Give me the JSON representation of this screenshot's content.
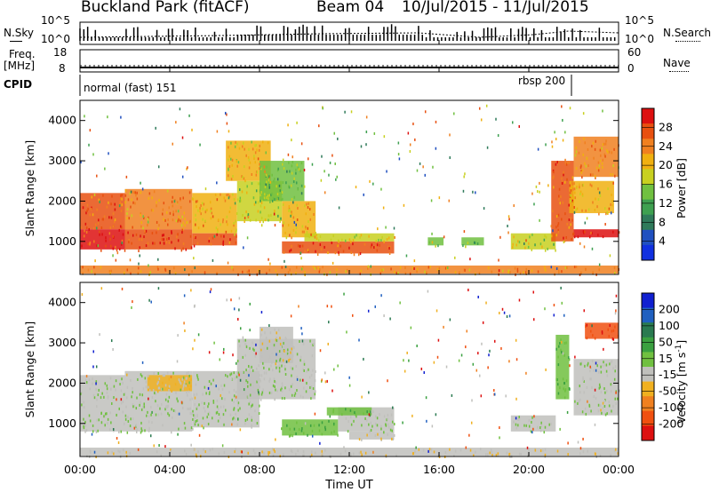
{
  "header": {
    "station": "Buckland Park (fitACF)",
    "beam": "Beam 04",
    "dates": "10/Jul/2015 - 11/Jul/2015"
  },
  "noise_panel": {
    "left_label": "N.Sky",
    "left_ticks": [
      "10^5",
      "10^0"
    ],
    "right_label": "N.Search",
    "right_ticks": [
      "10^5",
      "10^0"
    ]
  },
  "freq_panel": {
    "left_label": "Freq.",
    "left_unit": "[MHz]",
    "left_ticks": [
      "18",
      "8"
    ],
    "right_label": "Nave",
    "right_ticks": [
      "60",
      "0"
    ]
  },
  "cpid_panel": {
    "label": "CPID",
    "modes": [
      "normal (fast) 151",
      "rbsp 200"
    ]
  },
  "time_axis": {
    "ticks": [
      "00:00",
      "04:00",
      "08:00",
      "12:00",
      "16:00",
      "20:00",
      "00:00"
    ],
    "label": "Time UT"
  },
  "power_panel": {
    "ylabel": "Slant Range [km]",
    "yticks": [
      "1000",
      "2000",
      "3000",
      "4000"
    ],
    "colorbar_label": "Power [dB]",
    "colorbar_ticks": [
      "4",
      "8",
      "12",
      "16",
      "20",
      "24",
      "28"
    ],
    "colors": [
      "#1030e0",
      "#2050c0",
      "#2f7a5a",
      "#3ea050",
      "#70c040",
      "#c8d020",
      "#f0b010",
      "#f08020",
      "#e85010",
      "#dd1010"
    ]
  },
  "velocity_panel": {
    "ylabel": "Slant Range [km]",
    "yticks": [
      "1000",
      "2000",
      "3000",
      "4000"
    ],
    "colorbar_label": "Velocity [m s",
    "colorbar_label_sup": "-1",
    "colorbar_label_end": "]",
    "colorbar_ticks": [
      "200",
      "100",
      "50",
      "15",
      "-15",
      "-50",
      "-100",
      "-200"
    ],
    "colors": [
      "#1020d0",
      "#2060c0",
      "#2a7a50",
      "#3aa040",
      "#70c040",
      "#c0c0bc",
      "#f0b020",
      "#f08020",
      "#f05010",
      "#dd1010"
    ]
  },
  "chart_data": [
    {
      "type": "heatmap",
      "title": "",
      "xlabel": "Time UT",
      "ylabel": "Slant Range [km]",
      "xlim": [
        0,
        24
      ],
      "ylim": [
        180,
        4500
      ],
      "value_label": "Power [dB]",
      "value_range": [
        0,
        30
      ],
      "cells": [
        {
          "t0": 0.0,
          "t1": 2.0,
          "r0": 1300,
          "r1": 2200,
          "v": 24
        },
        {
          "t0": 0.0,
          "t1": 2.0,
          "r0": 800,
          "r1": 1300,
          "v": 27
        },
        {
          "t0": 2.0,
          "t1": 5.0,
          "r0": 1300,
          "r1": 2300,
          "v": 21
        },
        {
          "t0": 2.0,
          "t1": 5.0,
          "r0": 800,
          "r1": 1300,
          "v": 26
        },
        {
          "t0": 5.0,
          "t1": 7.0,
          "r0": 1200,
          "r1": 2200,
          "v": 20
        },
        {
          "t0": 5.0,
          "t1": 7.0,
          "r0": 900,
          "r1": 1200,
          "v": 26
        },
        {
          "t0": 6.5,
          "t1": 8.5,
          "r0": 2500,
          "r1": 3500,
          "v": 19
        },
        {
          "t0": 7.0,
          "t1": 9.0,
          "r0": 1500,
          "r1": 2500,
          "v": 15
        },
        {
          "t0": 8.0,
          "t1": 10.0,
          "r0": 2000,
          "r1": 3000,
          "v": 13
        },
        {
          "t0": 9.0,
          "t1": 10.5,
          "r0": 1100,
          "r1": 2000,
          "v": 20
        },
        {
          "t0": 9.0,
          "t1": 14.0,
          "r0": 700,
          "r1": 1000,
          "v": 25
        },
        {
          "t0": 10.0,
          "t1": 14.0,
          "r0": 1000,
          "r1": 1200,
          "v": 16
        },
        {
          "t0": 15.5,
          "t1": 16.2,
          "r0": 900,
          "r1": 1100,
          "v": 14
        },
        {
          "t0": 17.0,
          "t1": 18.0,
          "r0": 900,
          "r1": 1100,
          "v": 13
        },
        {
          "t0": 19.2,
          "t1": 21.2,
          "r0": 800,
          "r1": 1200,
          "v": 15
        },
        {
          "t0": 21.0,
          "t1": 22.0,
          "r0": 1000,
          "r1": 3000,
          "v": 24
        },
        {
          "t0": 21.8,
          "t1": 23.8,
          "r0": 1700,
          "r1": 2500,
          "v": 20
        },
        {
          "t0": 22.0,
          "t1": 24.0,
          "r0": 2600,
          "r1": 3600,
          "v": 22
        },
        {
          "t0": 22.0,
          "t1": 24.0,
          "r0": 1100,
          "r1": 1300,
          "v": 27
        },
        {
          "t0": 0.0,
          "t1": 24.0,
          "r0": 200,
          "r1": 400,
          "v": 22
        }
      ]
    },
    {
      "type": "heatmap",
      "title": "",
      "xlabel": "Time UT",
      "ylabel": "Slant Range [km]",
      "xlim": [
        0,
        24
      ],
      "ylim": [
        180,
        4500
      ],
      "value_label": "Velocity [m s-1]",
      "value_range": [
        -200,
        200
      ],
      "cells": [
        {
          "t0": 0.0,
          "t1": 2.0,
          "r0": 800,
          "r1": 2200,
          "v": 0
        },
        {
          "t0": 2.0,
          "t1": 5.0,
          "r0": 800,
          "r1": 2300,
          "v": 0
        },
        {
          "t0": 3.0,
          "t1": 5.0,
          "r0": 1800,
          "r1": 2200,
          "v": -40
        },
        {
          "t0": 5.0,
          "t1": 8.0,
          "r0": 900,
          "r1": 2300,
          "v": 0
        },
        {
          "t0": 7.0,
          "t1": 10.5,
          "r0": 1600,
          "r1": 3100,
          "v": 0
        },
        {
          "t0": 8.0,
          "t1": 9.5,
          "r0": 2500,
          "r1": 3400,
          "v": -30
        },
        {
          "t0": 9.0,
          "t1": 11.5,
          "r0": 700,
          "r1": 1100,
          "v": 40
        },
        {
          "t0": 11.5,
          "t1": 14.0,
          "r0": 800,
          "r1": 1400,
          "v": 0
        },
        {
          "t0": 11.0,
          "t1": 13.0,
          "r0": 1200,
          "r1": 1400,
          "v": 40
        },
        {
          "t0": 12.0,
          "t1": 14.0,
          "r0": 600,
          "r1": 800,
          "v": -30
        },
        {
          "t0": 19.2,
          "t1": 21.2,
          "r0": 800,
          "r1": 1200,
          "v": 0
        },
        {
          "t0": 21.2,
          "t1": 21.8,
          "r0": 1600,
          "r1": 3200,
          "v": 40
        },
        {
          "t0": 22.5,
          "t1": 24.0,
          "r0": 3100,
          "r1": 3500,
          "v": -150
        },
        {
          "t0": 22.0,
          "t1": 24.0,
          "r0": 1200,
          "r1": 2600,
          "v": 0
        },
        {
          "t0": 0.0,
          "t1": 24.0,
          "r0": 200,
          "r1": 400,
          "v": -30
        }
      ]
    }
  ]
}
